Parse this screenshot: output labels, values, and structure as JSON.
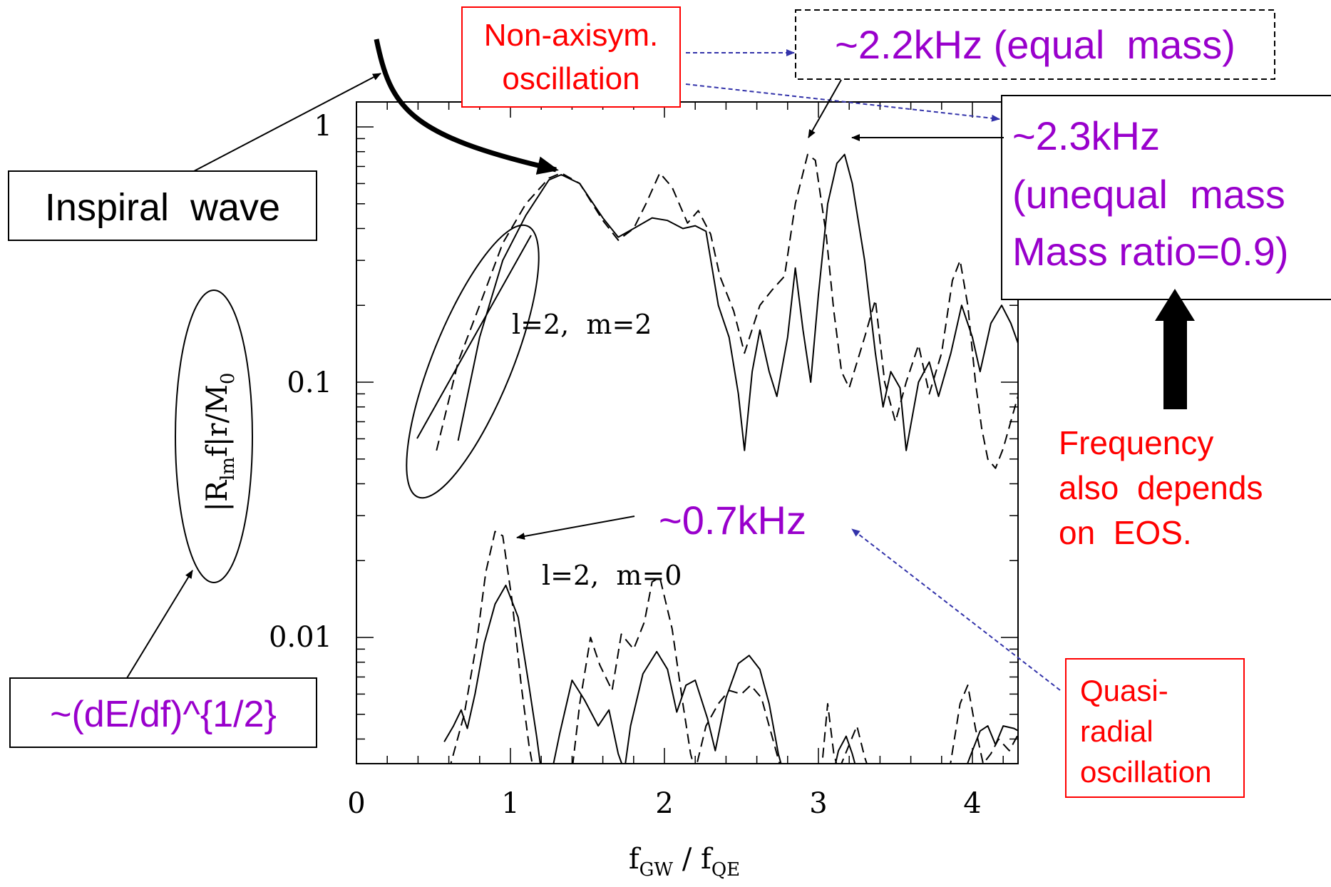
{
  "colors": {
    "purple": "#9900cc",
    "red": "#ff0000",
    "blue_arrow": "#3333aa",
    "ink": "#000000"
  },
  "chart_data": {
    "type": "line",
    "scale": {
      "x": "linear",
      "y": "log"
    },
    "xlim": [
      0,
      4.3
    ],
    "ylim": [
      0.003,
      1.3
    ],
    "x_ticks": [
      "0",
      "1",
      "2",
      "3",
      "4"
    ],
    "y_ticks": [
      "1",
      "0.1",
      "0.01"
    ],
    "xlabel": {
      "main": "f",
      "sub1": "GW",
      "sep": " / ",
      "main2": "f",
      "sub2": "QE"
    },
    "ylabel": {
      "pre": "|R",
      "sub": "lm",
      "mid": "f|r/M",
      "sub2": "0"
    },
    "series": [
      {
        "group": "l=2, m=2",
        "style": "solid",
        "points": [
          [
            0.66,
            0.059
          ],
          [
            0.8,
            0.15
          ],
          [
            0.95,
            0.3
          ],
          [
            1.1,
            0.45
          ],
          [
            1.25,
            0.62
          ],
          [
            1.33,
            0.65
          ],
          [
            1.45,
            0.6
          ],
          [
            1.6,
            0.44
          ],
          [
            1.7,
            0.37
          ],
          [
            1.8,
            0.4
          ],
          [
            1.92,
            0.44
          ],
          [
            2.02,
            0.43
          ],
          [
            2.12,
            0.4
          ],
          [
            2.2,
            0.41
          ],
          [
            2.27,
            0.39
          ],
          [
            2.35,
            0.2
          ],
          [
            2.42,
            0.15
          ],
          [
            2.48,
            0.09
          ],
          [
            2.52,
            0.054
          ],
          [
            2.57,
            0.11
          ],
          [
            2.62,
            0.16
          ],
          [
            2.68,
            0.11
          ],
          [
            2.73,
            0.088
          ],
          [
            2.8,
            0.15
          ],
          [
            2.85,
            0.28
          ],
          [
            2.9,
            0.16
          ],
          [
            2.95,
            0.1
          ],
          [
            3.0,
            0.22
          ],
          [
            3.06,
            0.5
          ],
          [
            3.12,
            0.72
          ],
          [
            3.17,
            0.78
          ],
          [
            3.22,
            0.6
          ],
          [
            3.3,
            0.3
          ],
          [
            3.37,
            0.13
          ],
          [
            3.42,
            0.08
          ],
          [
            3.47,
            0.11
          ],
          [
            3.53,
            0.095
          ],
          [
            3.57,
            0.054
          ],
          [
            3.65,
            0.1
          ],
          [
            3.72,
            0.12
          ],
          [
            3.78,
            0.088
          ],
          [
            3.86,
            0.13
          ],
          [
            3.93,
            0.2
          ],
          [
            4.0,
            0.15
          ],
          [
            4.05,
            0.11
          ],
          [
            4.12,
            0.17
          ],
          [
            4.19,
            0.2
          ],
          [
            4.25,
            0.17
          ],
          [
            4.3,
            0.14
          ]
        ]
      },
      {
        "group": "l=2, m=2",
        "style": "dashed",
        "points": [
          [
            0.52,
            0.054
          ],
          [
            0.66,
            0.12
          ],
          [
            0.8,
            0.2
          ],
          [
            0.95,
            0.35
          ],
          [
            1.1,
            0.5
          ],
          [
            1.25,
            0.63
          ],
          [
            1.33,
            0.66
          ],
          [
            1.45,
            0.6
          ],
          [
            1.6,
            0.43
          ],
          [
            1.7,
            0.36
          ],
          [
            1.8,
            0.4
          ],
          [
            1.88,
            0.5
          ],
          [
            1.97,
            0.66
          ],
          [
            2.05,
            0.58
          ],
          [
            2.15,
            0.42
          ],
          [
            2.22,
            0.47
          ],
          [
            2.3,
            0.38
          ],
          [
            2.36,
            0.26
          ],
          [
            2.45,
            0.19
          ],
          [
            2.52,
            0.13
          ],
          [
            2.62,
            0.2
          ],
          [
            2.7,
            0.23
          ],
          [
            2.78,
            0.26
          ],
          [
            2.85,
            0.5
          ],
          [
            2.93,
            0.78
          ],
          [
            2.98,
            0.74
          ],
          [
            3.05,
            0.38
          ],
          [
            3.1,
            0.19
          ],
          [
            3.15,
            0.11
          ],
          [
            3.2,
            0.095
          ],
          [
            3.3,
            0.15
          ],
          [
            3.37,
            0.21
          ],
          [
            3.43,
            0.1
          ],
          [
            3.5,
            0.07
          ],
          [
            3.57,
            0.1
          ],
          [
            3.65,
            0.14
          ],
          [
            3.72,
            0.09
          ],
          [
            3.8,
            0.13
          ],
          [
            3.87,
            0.25
          ],
          [
            3.92,
            0.3
          ],
          [
            3.97,
            0.2
          ],
          [
            4.02,
            0.1
          ],
          [
            4.06,
            0.066
          ],
          [
            4.1,
            0.05
          ],
          [
            4.15,
            0.046
          ],
          [
            4.2,
            0.055
          ],
          [
            4.3,
            0.09
          ]
        ]
      },
      {
        "group": "l=2, m=0",
        "style": "solid",
        "points": [
          [
            0.57,
            0.0039
          ],
          [
            0.63,
            0.0045
          ],
          [
            0.68,
            0.0052
          ],
          [
            0.72,
            0.0044
          ],
          [
            0.77,
            0.006
          ],
          [
            0.83,
            0.0095
          ],
          [
            0.9,
            0.0135
          ],
          [
            0.97,
            0.016
          ],
          [
            1.05,
            0.012
          ],
          [
            1.12,
            0.0065
          ],
          [
            1.17,
            0.0041
          ],
          [
            1.2,
            0.003
          ],
          [
            1.25,
            0.003
          ],
          [
            1.27,
            0.003
          ],
          [
            1.32,
            0.0042
          ],
          [
            1.4,
            0.0068
          ],
          [
            1.48,
            0.0057
          ],
          [
            1.57,
            0.0045
          ],
          [
            1.64,
            0.0052
          ],
          [
            1.7,
            0.0035
          ],
          [
            1.74,
            0.003
          ],
          [
            1.78,
            0.0045
          ],
          [
            1.86,
            0.0072
          ],
          [
            1.95,
            0.0088
          ],
          [
            2.02,
            0.0075
          ],
          [
            2.08,
            0.0051
          ],
          [
            2.14,
            0.0065
          ],
          [
            2.2,
            0.0068
          ],
          [
            2.28,
            0.0048
          ],
          [
            2.33,
            0.0036
          ],
          [
            2.4,
            0.0058
          ],
          [
            2.48,
            0.0079
          ],
          [
            2.55,
            0.0085
          ],
          [
            2.62,
            0.0075
          ],
          [
            2.68,
            0.0055
          ],
          [
            2.74,
            0.0035
          ],
          [
            2.77,
            0.003
          ],
          [
            2.82,
            0.003
          ],
          [
            3.1,
            0.003
          ],
          [
            3.13,
            0.0036
          ],
          [
            3.18,
            0.0041
          ],
          [
            3.22,
            0.0035
          ],
          [
            3.25,
            0.003
          ],
          [
            3.95,
            0.003
          ],
          [
            4.0,
            0.0036
          ],
          [
            4.05,
            0.0043
          ],
          [
            4.1,
            0.0045
          ],
          [
            4.15,
            0.0038
          ],
          [
            4.2,
            0.0045
          ],
          [
            4.27,
            0.0044
          ],
          [
            4.3,
            0.0043
          ]
        ]
      },
      {
        "group": "l=2, m=0",
        "style": "dashed",
        "points": [
          [
            0.6,
            0.003
          ],
          [
            0.7,
            0.005
          ],
          [
            0.78,
            0.0095
          ],
          [
            0.84,
            0.018
          ],
          [
            0.9,
            0.026
          ],
          [
            0.95,
            0.025
          ],
          [
            1.01,
            0.014
          ],
          [
            1.07,
            0.0065
          ],
          [
            1.12,
            0.0038
          ],
          [
            1.15,
            0.003
          ],
          [
            1.4,
            0.003
          ],
          [
            1.45,
            0.0055
          ],
          [
            1.52,
            0.01
          ],
          [
            1.58,
            0.0078
          ],
          [
            1.66,
            0.0062
          ],
          [
            1.72,
            0.0103
          ],
          [
            1.8,
            0.009
          ],
          [
            1.87,
            0.0115
          ],
          [
            1.92,
            0.0165
          ],
          [
            1.97,
            0.0172
          ],
          [
            2.05,
            0.0108
          ],
          [
            2.12,
            0.0055
          ],
          [
            2.17,
            0.0035
          ],
          [
            2.2,
            0.003
          ],
          [
            2.27,
            0.0045
          ],
          [
            2.35,
            0.0055
          ],
          [
            2.42,
            0.0062
          ],
          [
            2.5,
            0.006
          ],
          [
            2.56,
            0.0065
          ],
          [
            2.63,
            0.0058
          ],
          [
            2.68,
            0.0045
          ],
          [
            2.73,
            0.0035
          ],
          [
            2.76,
            0.003
          ],
          [
            3.02,
            0.003
          ],
          [
            3.06,
            0.0055
          ],
          [
            3.1,
            0.0035
          ],
          [
            3.13,
            0.003
          ],
          [
            3.2,
            0.0038
          ],
          [
            3.25,
            0.0045
          ],
          [
            3.3,
            0.0034
          ],
          [
            3.33,
            0.003
          ],
          [
            3.85,
            0.003
          ],
          [
            3.92,
            0.0055
          ],
          [
            3.97,
            0.0065
          ],
          [
            4.02,
            0.0044
          ],
          [
            4.07,
            0.0032
          ],
          [
            4.12,
            0.0035
          ],
          [
            4.17,
            0.004
          ],
          [
            4.24,
            0.0036
          ],
          [
            4.3,
            0.0042
          ]
        ]
      }
    ],
    "annotations": {
      "m2_label": "l=2,  m=2",
      "m0_label": "l=2,  m=0"
    }
  },
  "labels": {
    "inspiral": "Inspiral  wave",
    "non_axisym_line1": "Non-axisym.",
    "non_axisym_line2": "oscillation",
    "equal_mass": "~2.2kHz (equal  mass)",
    "unequal_line1": "~2.3kHz",
    "unequal_line2": "(unequal  mass",
    "unequal_line3": "Mass ratio=0.9)",
    "freq_line1": "Frequency",
    "freq_line2": "also  depends",
    "freq_line3": "on  EOS.",
    "khz07": "~0.7kHz",
    "quasi_line1": "Quasi-",
    "quasi_line2": "radial",
    "quasi_line3": "oscillation",
    "dedf": "~(dE/df)^{1/2}"
  }
}
